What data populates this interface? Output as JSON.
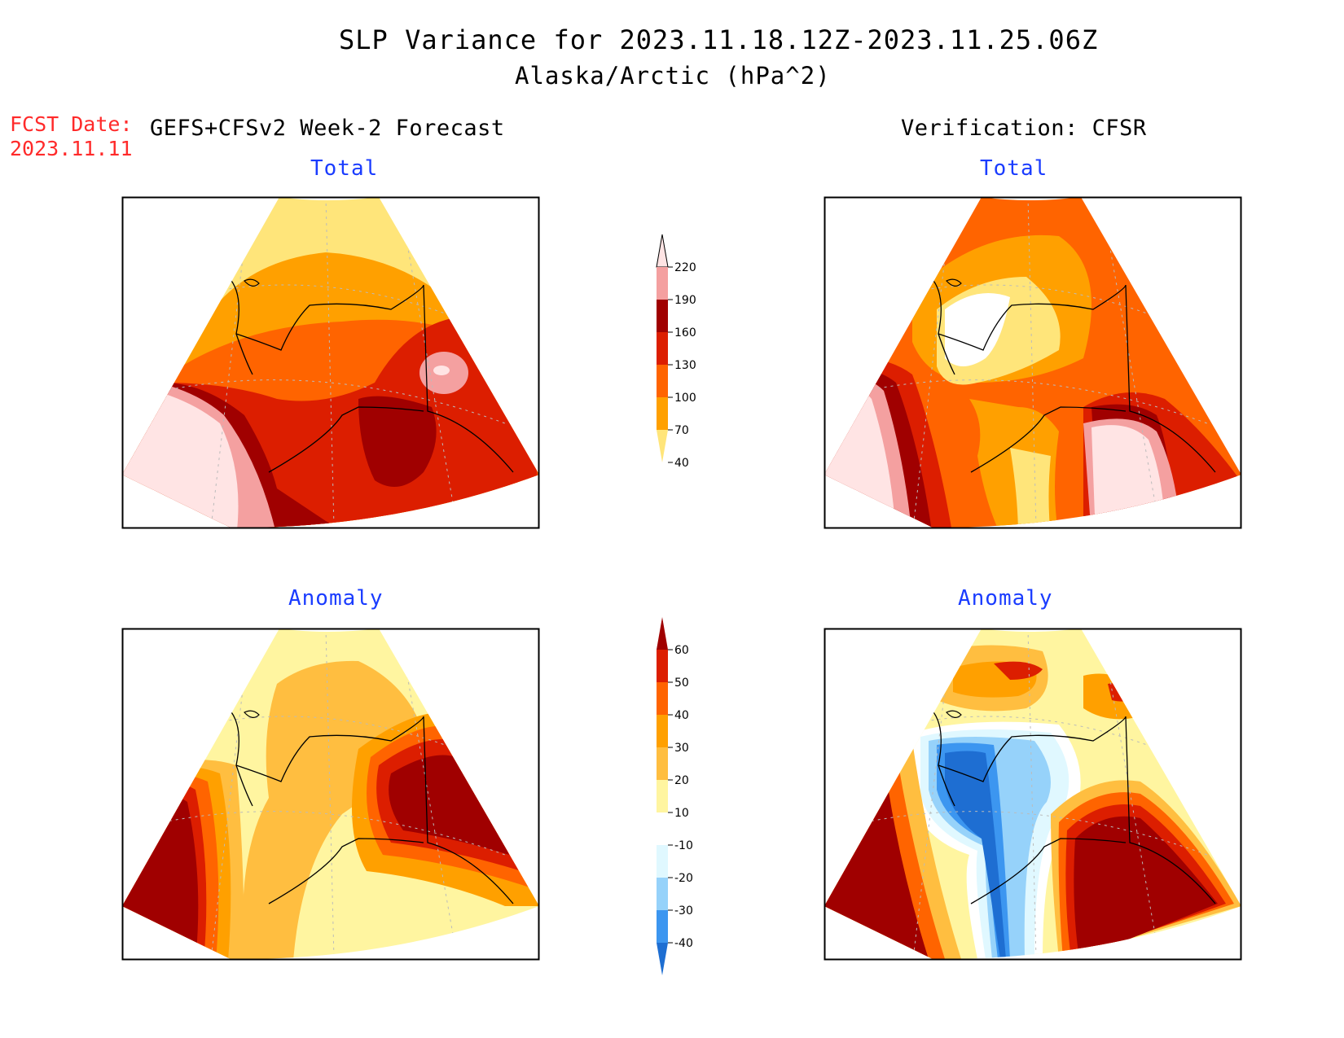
{
  "header": {
    "title": "SLP Variance for 2023.11.18.12Z-2023.11.25.06Z",
    "subtitle": "Alaska/Arctic (hPa^2)"
  },
  "forecast_date": {
    "label": "FCST Date:",
    "value": "2023.11.11"
  },
  "columns": {
    "left": "GEFS+CFSv2 Week-2 Forecast",
    "right": "Verification: CFSR"
  },
  "panels": {
    "total_left": "Total",
    "total_right": "Total",
    "anomaly_left": "Anomaly",
    "anomaly_right": "Anomaly"
  },
  "colorbar_total": {
    "ticks": [
      "220",
      "190",
      "160",
      "130",
      "100",
      "70",
      "40"
    ],
    "colors": [
      "#ffe4e4",
      "#f4a0a0",
      "#a00000",
      "#dc1e00",
      "#ff6400",
      "#ffa000",
      "#ffe57a"
    ]
  },
  "colorbar_anomaly": {
    "ticks": [
      "60",
      "50",
      "40",
      "30",
      "20",
      "10",
      "-10",
      "-20",
      "-30",
      "-40"
    ],
    "colors": [
      "#a00000",
      "#dc1e00",
      "#ff6400",
      "#ffa000",
      "#ffbe40",
      "#fff5a0",
      "#ffffff",
      "#e0f8ff",
      "#96d2fa",
      "#3c96f0",
      "#1e6ed2"
    ]
  },
  "colors": {
    "fcst_date": "#ff2a2a",
    "panel_title": "#1a3cff"
  }
}
